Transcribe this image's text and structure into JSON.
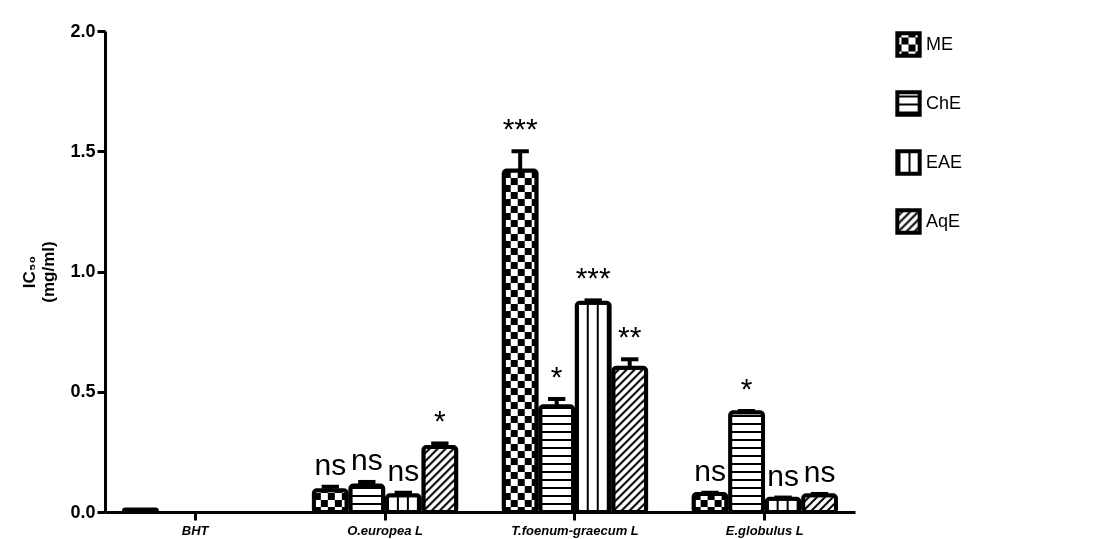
{
  "chart_data": {
    "type": "bar",
    "ylabel": "IC₅₀\n(mg/ml)",
    "categories": [
      "BHT",
      "O.europea L",
      "T.foenum-graecum L",
      "E.globulus L"
    ],
    "series": [
      {
        "name": "ME",
        "color": "#000000",
        "values": [
          0.01,
          0.09,
          1.42,
          0.075
        ],
        "errors": [
          null,
          0.015,
          0.08,
          0.005
        ],
        "value_labels": [
          null,
          "ns",
          "***",
          "ns"
        ]
      },
      {
        "name": "ChE",
        "color": "#000000",
        "values": [
          null,
          0.11,
          0.44,
          0.415
        ],
        "errors": [
          null,
          0.015,
          0.03,
          0.005
        ],
        "value_labels": [
          null,
          "ns",
          "*",
          "*"
        ]
      },
      {
        "name": "EAE",
        "color": "#000000",
        "values": [
          null,
          0.07,
          0.87,
          0.055
        ],
        "errors": [
          null,
          0.01,
          0.01,
          0.005
        ],
        "value_labels": [
          null,
          "ns",
          "***",
          "ns"
        ]
      },
      {
        "name": "AqE",
        "color": "#000000",
        "values": [
          null,
          0.27,
          0.6,
          0.07
        ],
        "errors": [
          null,
          0.015,
          0.035,
          0.005
        ],
        "value_labels": [
          null,
          "*",
          "**",
          "ns"
        ]
      }
    ],
    "ylim": [
      0,
      2
    ],
    "yticks": [
      {
        "value": 0,
        "label": "0.0"
      },
      0.5,
      {
        "value": 1,
        "label": "1.0"
      },
      1.5,
      {
        "value": 2,
        "label": "2.0"
      }
    ],
    "grid": false,
    "legend": "right"
  }
}
